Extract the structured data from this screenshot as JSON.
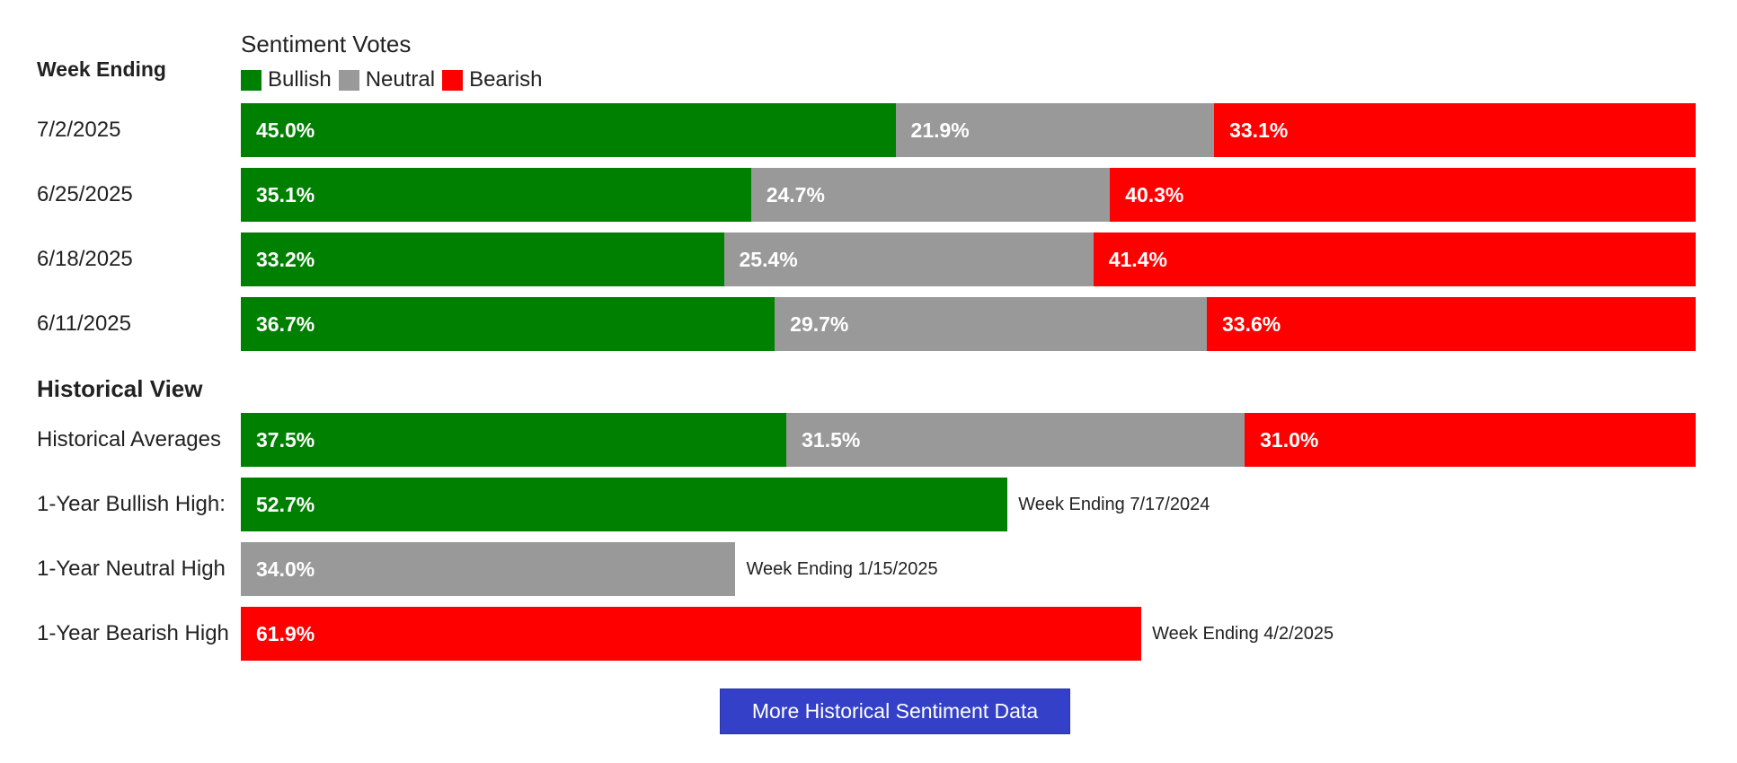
{
  "chart_data": {
    "type": "bar",
    "title": "Sentiment Votes",
    "week_heading": "Week Ending",
    "history_heading": "Historical View",
    "colors": {
      "Bullish": "#008000",
      "Neutral": "#999999",
      "Bearish": "#ff0000"
    },
    "legend": [
      {
        "name": "Bullish",
        "color": "#008000"
      },
      {
        "name": "Neutral",
        "color": "#999999"
      },
      {
        "name": "Bearish",
        "color": "#ff0000"
      }
    ],
    "weeks": [
      {
        "label": "7/2/2025",
        "bullish": 45.0,
        "neutral": 21.9,
        "bearish": 33.1,
        "labels": [
          "45.0%",
          "21.9%",
          "33.1%"
        ]
      },
      {
        "label": "6/25/2025",
        "bullish": 35.1,
        "neutral": 24.7,
        "bearish": 40.3,
        "labels": [
          "35.1%",
          "24.7%",
          "40.3%"
        ]
      },
      {
        "label": "6/18/2025",
        "bullish": 33.2,
        "neutral": 25.4,
        "bearish": 41.4,
        "labels": [
          "33.2%",
          "25.4%",
          "41.4%"
        ]
      },
      {
        "label": "6/11/2025",
        "bullish": 36.7,
        "neutral": 29.7,
        "bearish": 33.6,
        "labels": [
          "36.7%",
          "29.7%",
          "33.6%"
        ]
      }
    ],
    "historical_averages": {
      "label": "Historical Averages",
      "bullish": 37.5,
      "neutral": 31.5,
      "bearish": 31.0,
      "labels": [
        "37.5%",
        "31.5%",
        "31.0%"
      ]
    },
    "highs": [
      {
        "label": "1-Year Bullish High:",
        "sentiment": "Bullish",
        "value": 52.7,
        "value_label": "52.7%",
        "note": "Week Ending 7/17/2024"
      },
      {
        "label": "1-Year Neutral High",
        "sentiment": "Neutral",
        "value": 34.0,
        "value_label": "34.0%",
        "note": "Week Ending 1/15/2025"
      },
      {
        "label": "1-Year Bearish High",
        "sentiment": "Bearish",
        "value": 61.9,
        "value_label": "61.9%",
        "note": "Week Ending 4/2/2025"
      }
    ]
  },
  "button": {
    "label": "More Historical Sentiment Data"
  }
}
